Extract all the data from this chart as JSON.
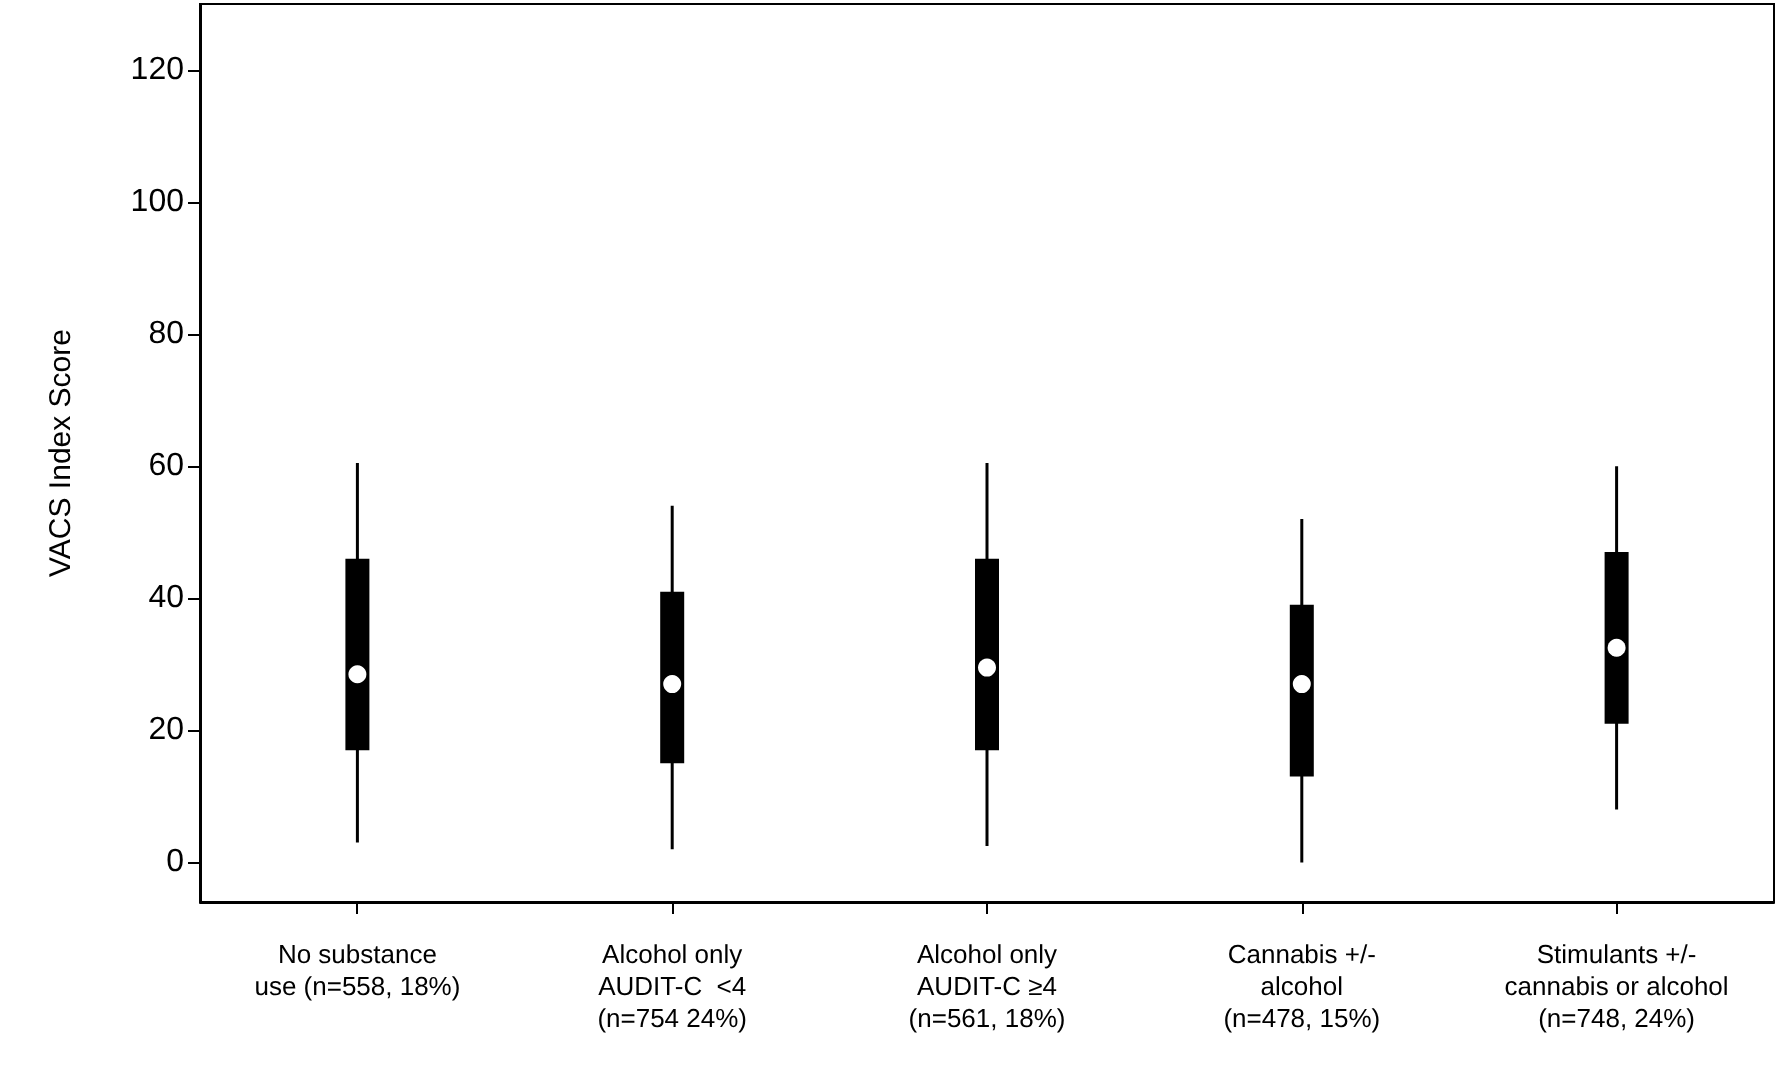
{
  "chart_data": {
    "type": "box",
    "ylabel": "VACS Index Score",
    "categories": [
      "No substance\nuse (n=558, 18%)",
      "Alcohol only\nAUDIT-C  <4\n(n=754 24%)",
      "Alcohol only\nAUDIT-C ≥4\n(n=561, 18%)",
      "Cannabis +/-\nalcohol\n(n=478, 15%)",
      "Stimulants +/-\ncannabis or alcohol\n(n=748, 24%)"
    ],
    "series": [
      {
        "color": "#000000",
        "boxes": [
          {
            "low": 3,
            "q1": 17,
            "median": 28.5,
            "q3": 46,
            "high": 60.5
          },
          {
            "low": 2,
            "q1": 15,
            "median": 27,
            "q3": 41,
            "high": 54
          },
          {
            "low": 2.5,
            "q1": 17,
            "median": 29.5,
            "q3": 46,
            "high": 60.5
          },
          {
            "low": 0,
            "q1": 13,
            "median": 27,
            "q3": 39,
            "high": 52
          },
          {
            "low": 8,
            "q1": 21,
            "median": 32.5,
            "q3": 47,
            "high": 60
          }
        ]
      }
    ],
    "ylim": [
      -6,
      130
    ],
    "yticks": [
      0,
      20,
      40,
      60,
      80,
      100,
      120
    ],
    "grid": false
  }
}
